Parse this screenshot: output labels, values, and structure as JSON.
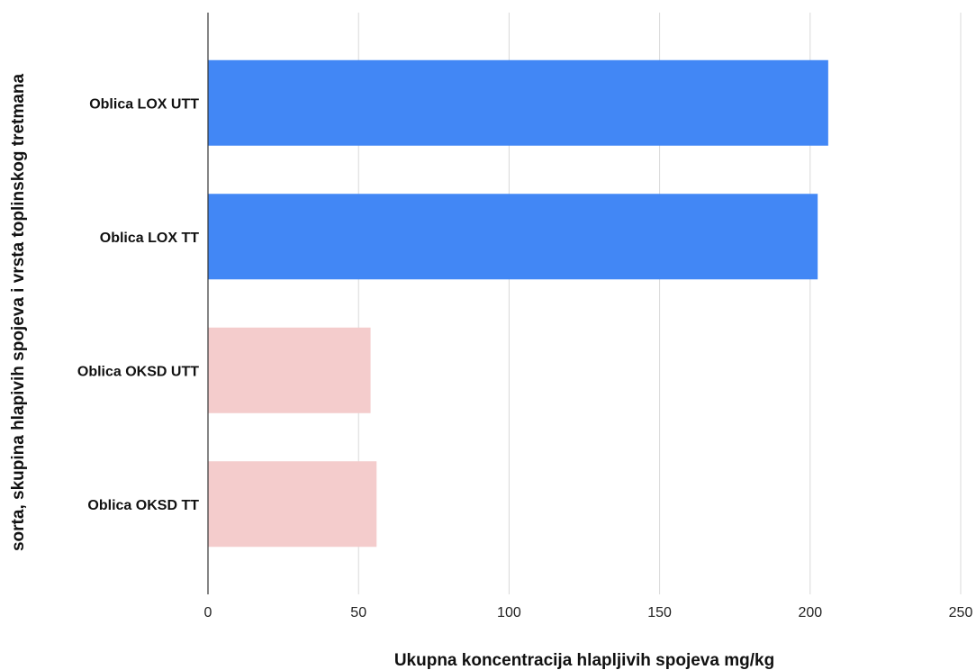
{
  "chart_data": {
    "type": "bar",
    "orientation": "horizontal",
    "title": "",
    "xlabel": "Ukupna koncentracija hlapljivih spojeva mg/kg",
    "ylabel": "sorta, skupina hlapivih spojeva i vrsta toplinskog tretmana",
    "categories": [
      "Oblica LOX UTT",
      "Oblica LOX TT",
      "Oblica OKSD UTT",
      "Oblica OKSD TT"
    ],
    "values": [
      206,
      202.5,
      54,
      56
    ],
    "colors": [
      "#4287f5",
      "#4287f5",
      "#f4cccc",
      "#f4cccc"
    ],
    "xlim": [
      0,
      250
    ],
    "xticks": [
      "0",
      "50",
      "100",
      "150",
      "200",
      "250"
    ],
    "grid": true,
    "legend": "none"
  }
}
